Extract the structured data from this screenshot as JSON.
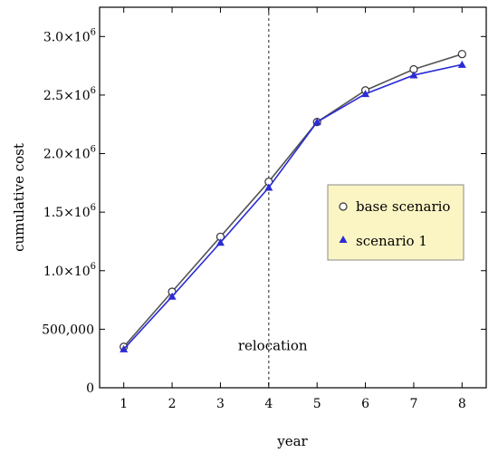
{
  "chart_data": {
    "type": "line",
    "title": "",
    "xlabel": "year",
    "ylabel": "cumulative cost",
    "x": [
      1,
      2,
      3,
      4,
      5,
      6,
      7,
      8
    ],
    "xlim": [
      0.5,
      8.5
    ],
    "ylim": [
      0,
      3250000
    ],
    "x_ticks": [
      "1",
      "2",
      "3",
      "4",
      "5",
      "6",
      "7",
      "8"
    ],
    "y_ticks": [
      {
        "value": 0,
        "label": "0"
      },
      {
        "value": 500000,
        "label": "500,000"
      },
      {
        "value": 1000000,
        "label": "1.0×10",
        "exp": "6"
      },
      {
        "value": 1500000,
        "label": "1.5×10",
        "exp": "6"
      },
      {
        "value": 2000000,
        "label": "2.0×10",
        "exp": "6"
      },
      {
        "value": 2500000,
        "label": "2.5×10",
        "exp": "6"
      },
      {
        "value": 3000000,
        "label": "3.0×10",
        "exp": "6"
      }
    ],
    "grid": false,
    "legend_position": "right-middle",
    "series": [
      {
        "name": "base scenario",
        "marker": "open-circle",
        "color": "#555555",
        "values": [
          350000,
          820000,
          1290000,
          1760000,
          2270000,
          2540000,
          2720000,
          2850000
        ]
      },
      {
        "name": "scenario 1",
        "marker": "filled-triangle",
        "color": "#2b2bd6",
        "values": [
          330000,
          780000,
          1240000,
          1710000,
          2270000,
          2510000,
          2670000,
          2760000
        ]
      }
    ],
    "annotations": [
      {
        "type": "vline",
        "x": 4,
        "style": "dashed",
        "color": "#555555"
      },
      {
        "type": "text",
        "text": "relocation",
        "x": 4.15,
        "y": 360000
      }
    ]
  }
}
